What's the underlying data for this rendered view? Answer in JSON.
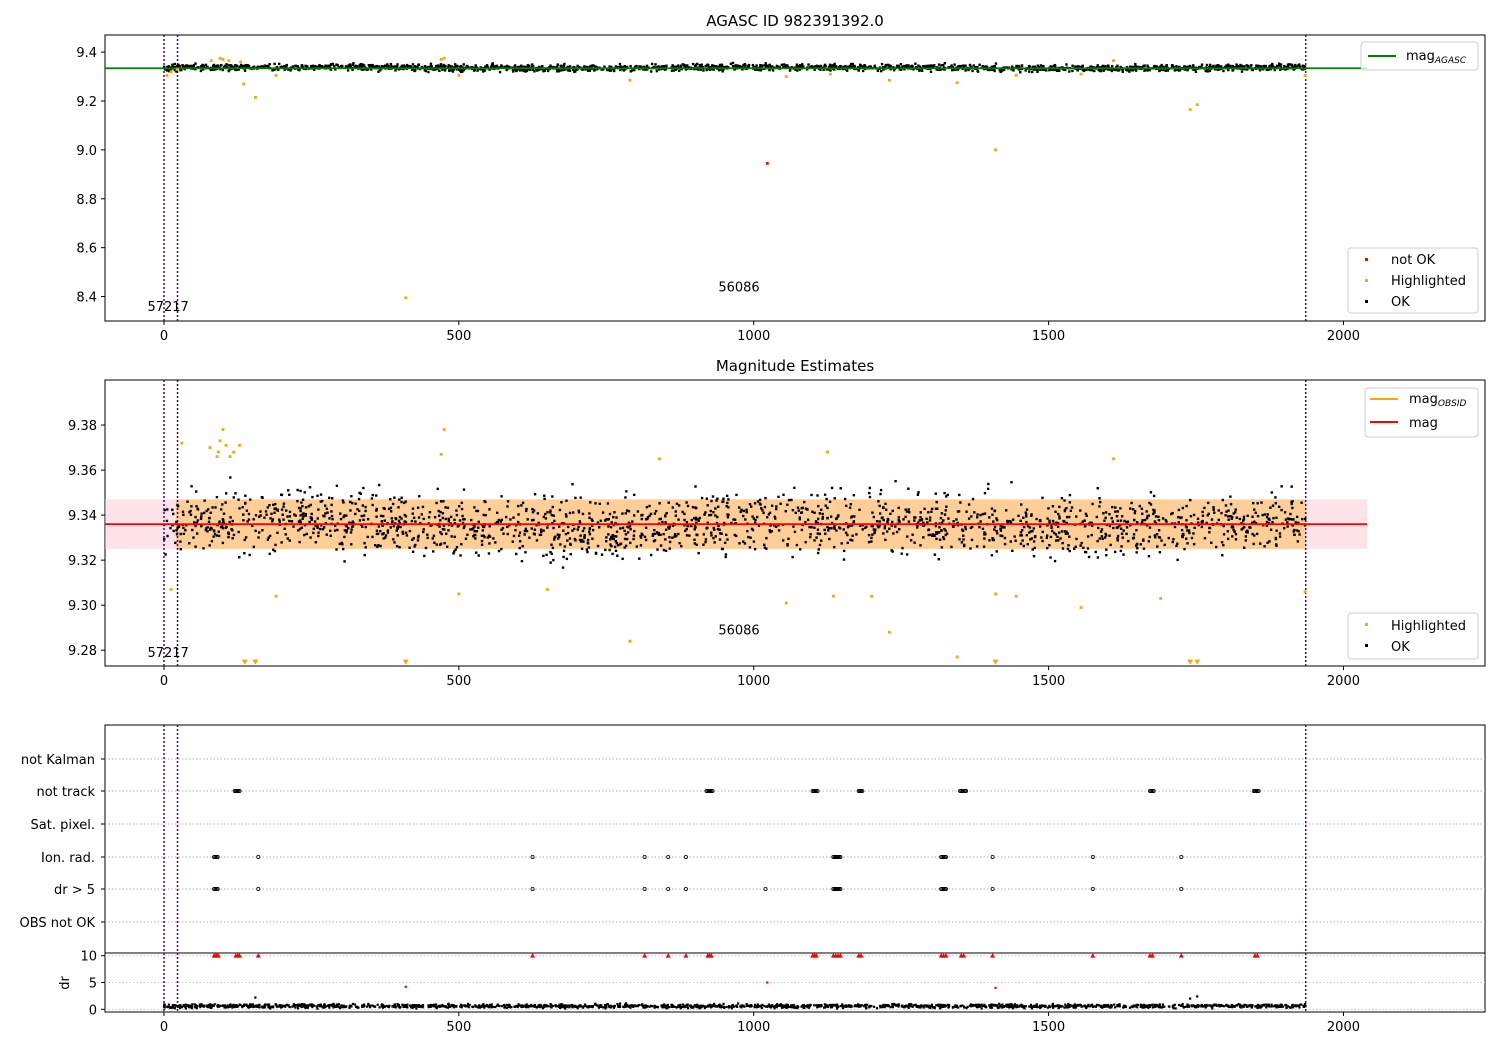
{
  "figure": {
    "panels": [
      {
        "id": "p1",
        "title": "AGASC ID 982391392.0",
        "xlim": [
          -100,
          2240
        ],
        "ylim": [
          8.3,
          9.47
        ],
        "xticks": [
          0,
          500,
          1000,
          1500,
          2000
        ],
        "yticks": [
          8.4,
          8.6,
          8.8,
          9.0,
          9.2,
          9.4
        ],
        "ytick_labels": [
          "8.4",
          "8.6",
          "8.8",
          "9.0",
          "9.2",
          "9.4"
        ],
        "text_labels": [
          {
            "text": "57217",
            "x": -28,
            "y": 8.34
          },
          {
            "text": "56086",
            "x": 940,
            "y": 8.42
          }
        ],
        "legend_top": [
          {
            "label": "mag",
            "sub": "AGASC",
            "color": "#008000"
          }
        ],
        "legend_bottom": [
          {
            "label": "not OK",
            "color": "#ff0000"
          },
          {
            "label": "Highlighted",
            "color": "#ffa500"
          },
          {
            "label": "OK",
            "color": "#000000"
          }
        ]
      },
      {
        "id": "p2",
        "title": "Magnitude Estimates",
        "xlim": [
          -100,
          2240
        ],
        "ylim": [
          9.273,
          9.4
        ],
        "xticks": [
          0,
          500,
          1000,
          1500,
          2000
        ],
        "yticks": [
          9.28,
          9.3,
          9.32,
          9.34,
          9.36,
          9.38
        ],
        "ytick_labels": [
          "9.28",
          "9.30",
          "9.32",
          "9.34",
          "9.36",
          "9.38"
        ],
        "text_labels": [
          {
            "text": "57217",
            "x": -28,
            "y": 9.277
          },
          {
            "text": "56086",
            "x": 940,
            "y": 9.287
          }
        ],
        "legend_top": [
          {
            "label": "mag",
            "sub": "OBSID",
            "color": "#ffa500"
          },
          {
            "label": "mag",
            "sub": "",
            "color": "#ff0000"
          }
        ],
        "legend_bottom": [
          {
            "label": "Highlighted",
            "color": "#ffa500"
          },
          {
            "label": "OK",
            "color": "#000000"
          }
        ]
      },
      {
        "id": "p3",
        "xlim": [
          -100,
          2240
        ],
        "flags": [
          "not Kalman",
          "not track",
          "Sat. pixel.",
          "Ion. rad.",
          "dr > 5",
          "OBS not OK"
        ],
        "ylabel": "dr",
        "dr_ylim": [
          -0.5,
          10.5
        ],
        "dr_yticks": [
          0,
          5,
          10
        ],
        "xticks": [
          0,
          500,
          1000,
          1500,
          2000
        ]
      }
    ],
    "xtick_labels": [
      "0",
      "500",
      "1000",
      "1500",
      "2000"
    ],
    "vlines_x": [
      0,
      23,
      1936
    ]
  },
  "chart_data": [
    {
      "type": "scatter",
      "title": "AGASC ID 982391392.0",
      "xlim": [
        -100,
        2240
      ],
      "ylim": [
        8.3,
        9.47
      ],
      "reference_line": {
        "name": "mag_AGASC",
        "y": 9.334,
        "x": [
          -100,
          2040
        ]
      },
      "baseline": {
        "name": "OK",
        "x_range": [
          0,
          1936
        ],
        "y_center": 9.336,
        "y_spread": 0.012
      },
      "series": [
        {
          "name": "not OK",
          "color": "#ff0000",
          "points": [
            [
              1023,
              8.945
            ]
          ]
        },
        {
          "name": "Highlighted",
          "color": "#ffa500",
          "points": [
            [
              5,
              9.305
            ],
            [
              12,
              9.32
            ],
            [
              22,
              9.33
            ],
            [
              80,
              9.365
            ],
            [
              95,
              9.375
            ],
            [
              100,
              9.37
            ],
            [
              110,
              9.365
            ],
            [
              130,
              9.36
            ],
            [
              135,
              9.27
            ],
            [
              155,
              9.215
            ],
            [
              190,
              9.305
            ],
            [
              410,
              8.395
            ],
            [
              470,
              9.37
            ],
            [
              475,
              9.375
            ],
            [
              500,
              9.305
            ],
            [
              790,
              9.285
            ],
            [
              1055,
              9.3
            ],
            [
              1130,
              9.31
            ],
            [
              1230,
              9.285
            ],
            [
              1345,
              9.275
            ],
            [
              1410,
              9.0
            ],
            [
              1445,
              9.305
            ],
            [
              1555,
              9.31
            ],
            [
              1610,
              9.365
            ],
            [
              1740,
              9.165
            ],
            [
              1752,
              9.185
            ],
            [
              1935,
              9.305
            ]
          ]
        }
      ]
    },
    {
      "type": "scatter",
      "title": "Magnitude Estimates",
      "xlim": [
        -100,
        2240
      ],
      "ylim": [
        9.273,
        9.4
      ],
      "reference_line": {
        "name": "mag",
        "y": 9.336,
        "x": [
          -100,
          2040
        ]
      },
      "bands": [
        {
          "x_range": [
            -100,
            2040
          ],
          "y_range": [
            9.325,
            9.347
          ],
          "color": "#ffc0cb"
        },
        {
          "x_range": [
            20,
            1936
          ],
          "y_range": [
            9.325,
            9.347
          ],
          "color": "#ffa500"
        }
      ],
      "baseline": {
        "name": "OK",
        "x_range": [
          0,
          1936
        ],
        "y_center": 9.336,
        "y_spread": 0.012
      },
      "series": [
        {
          "name": "Highlighted",
          "color": "#ffa500",
          "points": [
            [
              12,
              9.307
            ],
            [
              30,
              9.372
            ],
            [
              78,
              9.37
            ],
            [
              90,
              9.366
            ],
            [
              92,
              9.368
            ],
            [
              95,
              9.373
            ],
            [
              100,
              9.378
            ],
            [
              105,
              9.371
            ],
            [
              112,
              9.366
            ],
            [
              118,
              9.368
            ],
            [
              128,
              9.371
            ],
            [
              190,
              9.304
            ],
            [
              470,
              9.367
            ],
            [
              475,
              9.378
            ],
            [
              500,
              9.305
            ],
            [
              650,
              9.307
            ],
            [
              790,
              9.284
            ],
            [
              840,
              9.365
            ],
            [
              1055,
              9.301
            ],
            [
              1125,
              9.368
            ],
            [
              1135,
              9.304
            ],
            [
              1200,
              9.304
            ],
            [
              1230,
              9.288
            ],
            [
              1345,
              9.277
            ],
            [
              1410,
              9.305
            ],
            [
              1445,
              9.304
            ],
            [
              1555,
              9.299
            ],
            [
              1610,
              9.365
            ],
            [
              1690,
              9.303
            ],
            [
              1935,
              9.306
            ]
          ]
        },
        {
          "name": "Highlighted (below range)",
          "color": "#ffa500",
          "marker": "triangle-down",
          "points": [
            [
              137,
              9.2745
            ],
            [
              155,
              9.2745
            ],
            [
              410,
              9.2745
            ],
            [
              1410,
              9.2745
            ],
            [
              1740,
              9.2745
            ],
            [
              1752,
              9.2745
            ]
          ]
        }
      ]
    },
    {
      "type": "scatter",
      "ylabel": "dr",
      "xlim": [
        -100,
        2240
      ],
      "dr_ylim": [
        -0.5,
        10.5
      ],
      "flag_rows": [
        "not Kalman",
        "not track",
        "Sat. pixel.",
        "Ion. rad.",
        "dr > 5",
        "OBS not OK"
      ],
      "flags": {
        "not track": [
          [
            120,
            128
          ],
          [
            920,
            930
          ],
          [
            1100,
            1108
          ],
          [
            1178,
            1184
          ],
          [
            1350,
            1360
          ],
          [
            1672,
            1678
          ],
          [
            1848,
            1856
          ]
        ],
        "Ion. rad.": [
          [
            85,
            92
          ],
          [
            160,
            160
          ],
          [
            625,
            625
          ],
          [
            815,
            815
          ],
          [
            855,
            855
          ],
          [
            885,
            885
          ],
          [
            1135,
            1148
          ],
          [
            1318,
            1326
          ],
          [
            1405,
            1405
          ],
          [
            1575,
            1575
          ],
          [
            1725,
            1725
          ]
        ],
        "dr > 5": [
          [
            85,
            92
          ],
          [
            160,
            160
          ],
          [
            625,
            625
          ],
          [
            815,
            815
          ],
          [
            855,
            855
          ],
          [
            885,
            885
          ],
          [
            1020,
            1020
          ],
          [
            1135,
            1148
          ],
          [
            1318,
            1326
          ],
          [
            1405,
            1405
          ],
          [
            1575,
            1575
          ],
          [
            1725,
            1725
          ]
        ]
      },
      "dr_clipped_at_10": [
        85,
        88,
        90,
        92,
        122,
        125,
        128,
        160,
        625,
        815,
        855,
        885,
        922,
        925,
        928,
        1100,
        1103,
        1106,
        1135,
        1139,
        1143,
        1147,
        1178,
        1182,
        1318,
        1322,
        1326,
        1352,
        1356,
        1405,
        1575,
        1672,
        1676,
        1725,
        1850,
        1854
      ],
      "dr_outliers": [
        [
          155,
          2.2
        ],
        [
          410,
          4.2
        ],
        [
          1023,
          5.0
        ],
        [
          1410,
          4.0
        ],
        [
          1740,
          2.0
        ],
        [
          1752,
          2.4
        ]
      ],
      "dr_baseline": {
        "x_range": [
          0,
          1936
        ],
        "y_center": 0.6,
        "y_spread": 0.3
      }
    }
  ]
}
